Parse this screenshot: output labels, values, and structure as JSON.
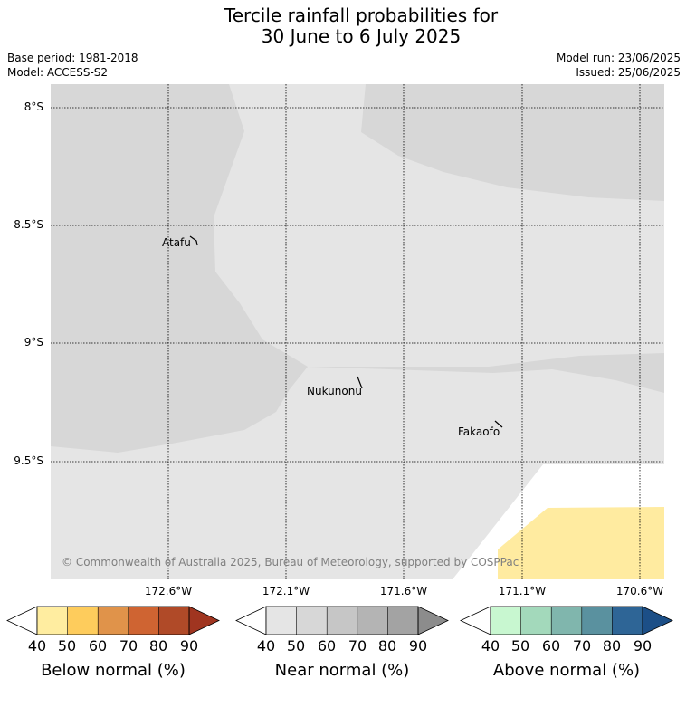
{
  "title": {
    "line1": "Tercile rainfall probabilities for",
    "line2": "30 June to 6 July 2025"
  },
  "meta": {
    "base_period": "Base period: 1981-2018",
    "model": "Model: ACCESS-S2",
    "model_run": "Model run: 23/06/2025",
    "issued": "Issued: 25/06/2025"
  },
  "map": {
    "lat_labels": [
      "8°S",
      "8.5°S",
      "9°S",
      "9.5°S"
    ],
    "lon_labels": [
      "172.6°W",
      "172.1°W",
      "171.6°W",
      "171.1°W",
      "170.6°W"
    ],
    "places": [
      "Atafu",
      "Nukunonu",
      "Fakaofo"
    ],
    "credit": "© Commonwealth of Australia 2025, Bureau of Meteorology, supported by COSPPac",
    "colors": {
      "ocean_near_normal": "#e5e5e5",
      "near_normal_50": "#d7d7d7",
      "below_normal_40": "#ffeba0",
      "no_data": "#ffffff",
      "grid": "#000000"
    }
  },
  "colorbars": [
    {
      "label": "Below normal (%)",
      "ticks": [
        "40",
        "50",
        "60",
        "70",
        "80",
        "90"
      ],
      "colors": [
        "#ffffff",
        "#ffeda0",
        "#fecc5c",
        "#e0934a",
        "#cf6432",
        "#b04a28",
        "#a03520"
      ]
    },
    {
      "label": "Near normal (%)",
      "ticks": [
        "40",
        "50",
        "60",
        "70",
        "80",
        "90"
      ],
      "colors": [
        "#ffffff",
        "#e5e5e5",
        "#d7d7d7",
        "#c6c6c6",
        "#b4b4b4",
        "#a3a3a3",
        "#8c8c8c"
      ]
    },
    {
      "label": "Above normal (%)",
      "ticks": [
        "40",
        "50",
        "60",
        "70",
        "80",
        "90"
      ],
      "colors": [
        "#ffffff",
        "#c8f7d0",
        "#a3d9bb",
        "#80b6ad",
        "#5a919f",
        "#2e6596",
        "#1c4f87"
      ]
    }
  ]
}
